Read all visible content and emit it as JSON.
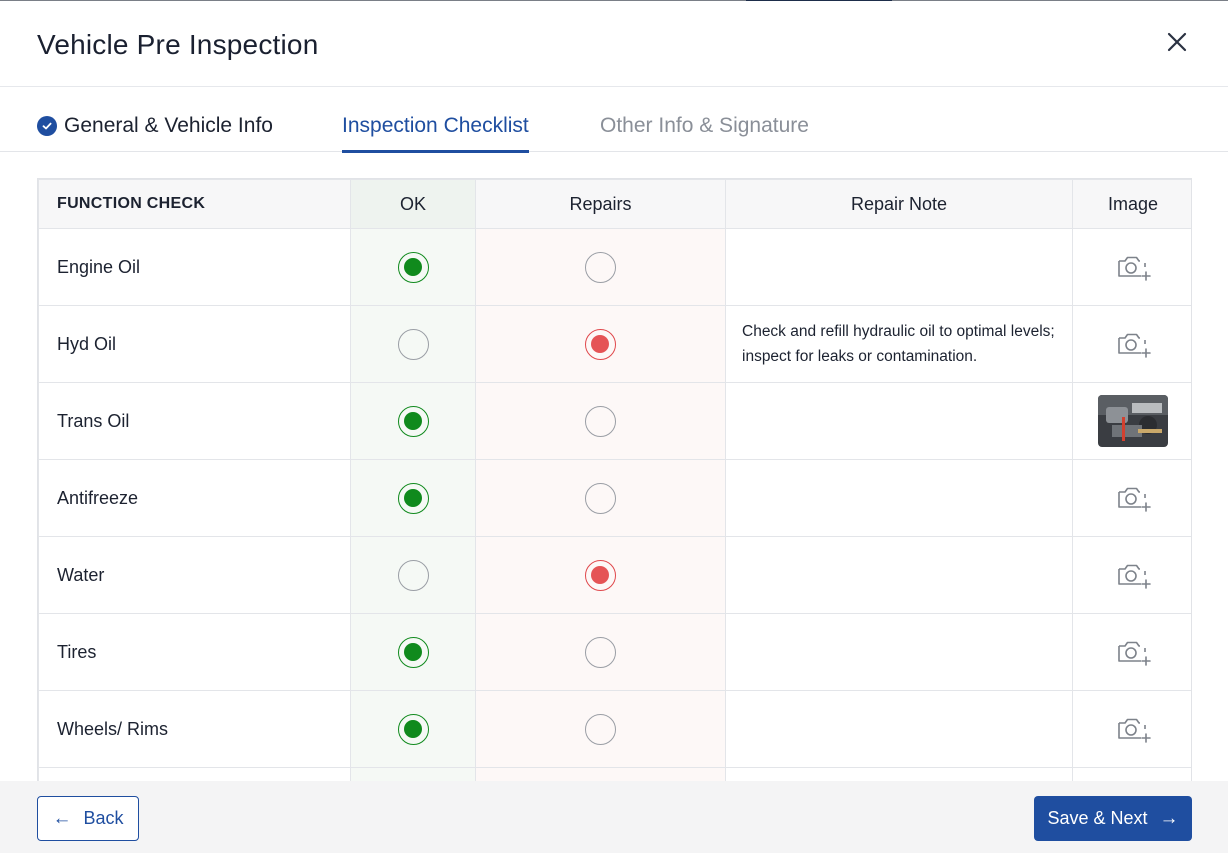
{
  "header": {
    "title": "Vehicle Pre Inspection",
    "close_icon": "close-icon"
  },
  "tabs": [
    {
      "label": "General & Vehicle Info",
      "state": "completed"
    },
    {
      "label": "Inspection Checklist",
      "state": "active"
    },
    {
      "label": "Other Info & Signature",
      "state": "inactive"
    }
  ],
  "table": {
    "columns": {
      "function": "FUNCTION CHECK",
      "ok": "OK",
      "repairs": "Repairs",
      "note": "Repair Note",
      "image": "Image"
    },
    "rows": [
      {
        "name": "Engine Oil",
        "status": "ok",
        "note": "",
        "image": "camera-add-icon"
      },
      {
        "name": "Hyd Oil",
        "status": "repairs",
        "note": "Check and refill hydraulic oil to optimal levels; inspect for leaks or contamination.",
        "image": "camera-add-icon"
      },
      {
        "name": "Trans Oil",
        "status": "ok",
        "note": "",
        "image": "photo-thumbnail"
      },
      {
        "name": "Antifreeze",
        "status": "ok",
        "note": "",
        "image": "camera-add-icon"
      },
      {
        "name": "Water",
        "status": "repairs",
        "note": "",
        "image": "camera-add-icon"
      },
      {
        "name": "Tires",
        "status": "ok",
        "note": "",
        "image": "camera-add-icon"
      },
      {
        "name": "Wheels/ Rims",
        "status": "ok",
        "note": "",
        "image": "camera-add-icon"
      }
    ]
  },
  "footer": {
    "back_label": "Back",
    "next_label": "Save & Next"
  },
  "colors": {
    "primary": "#1f4ea0",
    "ok": "#108a1d",
    "repair": "#e55456"
  }
}
